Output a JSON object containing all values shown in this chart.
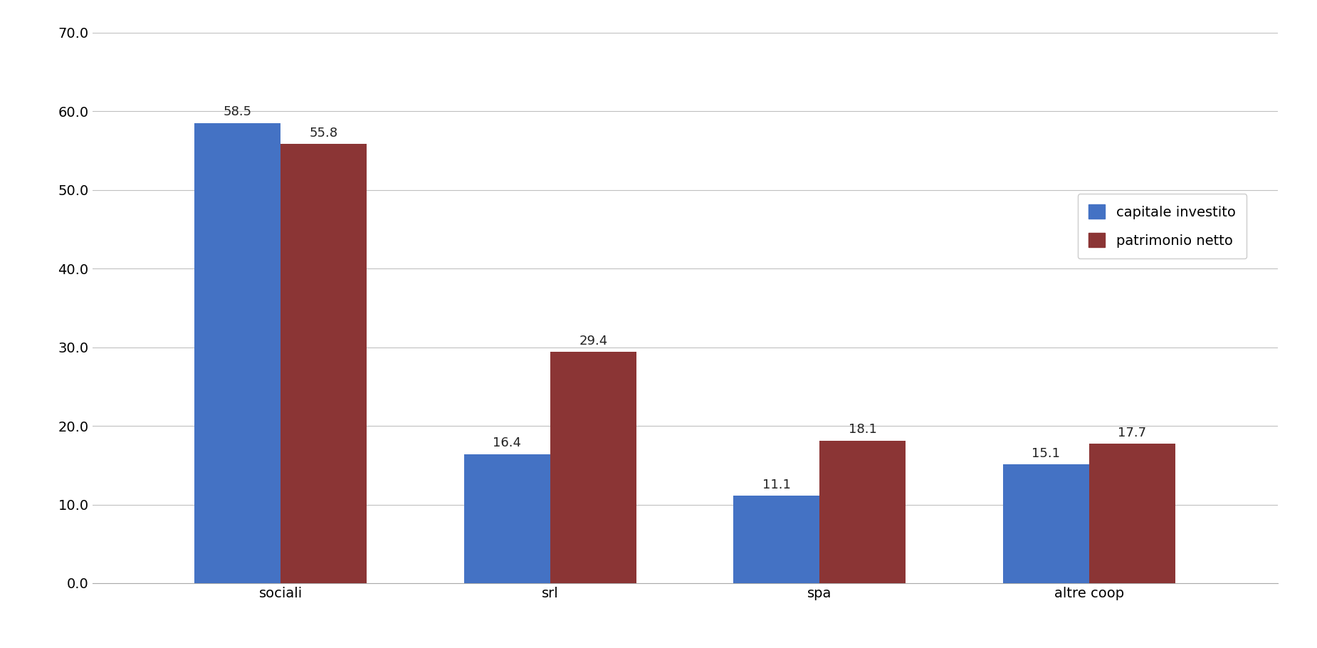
{
  "categories": [
    "sociali",
    "srl",
    "spa",
    "altre coop"
  ],
  "capitale_investito": [
    58.5,
    16.4,
    11.1,
    15.1
  ],
  "patrimonio_netto": [
    55.8,
    29.4,
    18.1,
    17.7
  ],
  "bar_color_capitale": "#4472c4",
  "bar_color_patrimonio": "#8b3535",
  "legend_labels": [
    "capitale investito",
    "patrimonio netto"
  ],
  "ylim": [
    0.0,
    70.0
  ],
  "yticks": [
    0.0,
    10.0,
    20.0,
    30.0,
    40.0,
    50.0,
    60.0,
    70.0
  ],
  "bar_width": 0.32,
  "background_color": "#ffffff",
  "grid_color": "#c0c0c0",
  "tick_fontsize": 14,
  "legend_fontsize": 14,
  "value_fontsize": 13,
  "xtick_fontsize": 14
}
